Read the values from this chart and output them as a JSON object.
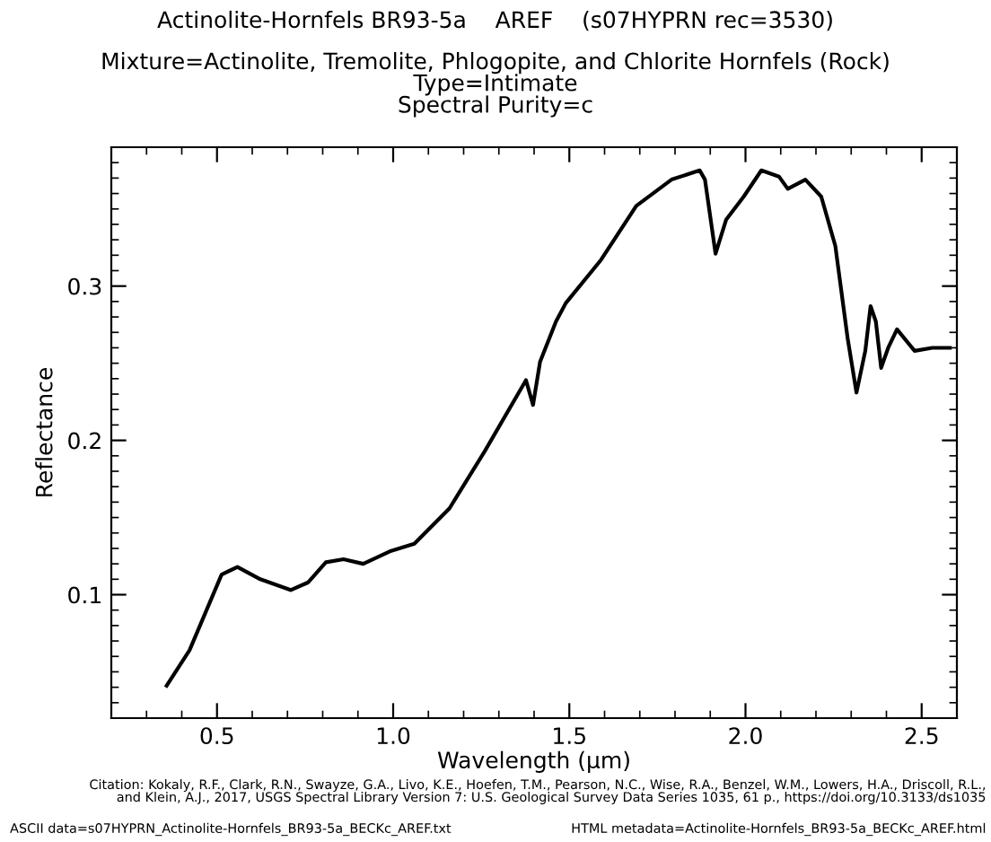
{
  "chart_data": {
    "type": "line",
    "title": "Actinolite-Hornfels BR93-5a    AREF    (s07HYPRN rec=3530)",
    "subtitle": "Mixture=Actinolite, Tremolite, Phlogopite, and Chlorite Hornfels (Rock)\nType=Intimate\nSpectral Purity=c",
    "xlabel": "Wavelength (μm)",
    "ylabel": "Reflectance",
    "x": [
      0.357,
      0.422,
      0.513,
      0.558,
      0.623,
      0.709,
      0.759,
      0.809,
      0.859,
      0.915,
      0.99,
      1.06,
      1.16,
      1.26,
      1.377,
      1.397,
      1.417,
      1.462,
      1.49,
      1.59,
      1.69,
      1.79,
      1.87,
      1.885,
      1.915,
      1.945,
      1.995,
      2.045,
      2.095,
      2.12,
      2.17,
      2.215,
      2.255,
      2.29,
      2.315,
      2.34,
      2.355,
      2.37,
      2.385,
      2.405,
      2.43,
      2.48,
      2.53,
      2.58
    ],
    "series": [
      {
        "color": "#000000",
        "values": [
          0.041,
          0.064,
          0.113,
          0.118,
          0.11,
          0.103,
          0.108,
          0.121,
          0.123,
          0.12,
          0.128,
          0.133,
          0.156,
          0.193,
          0.239,
          0.223,
          0.251,
          0.277,
          0.289,
          0.317,
          0.352,
          0.369,
          0.375,
          0.369,
          0.321,
          0.343,
          0.358,
          0.375,
          0.371,
          0.363,
          0.369,
          0.358,
          0.326,
          0.266,
          0.231,
          0.258,
          0.287,
          0.277,
          0.247,
          0.26,
          0.272,
          0.258,
          0.26,
          0.26
        ]
      }
    ],
    "xlim": [
      0.2,
      2.6
    ],
    "ylim": [
      0.02,
      0.39
    ],
    "xticks": [
      0.5,
      {
        "value": 1.0,
        "label": "1.0"
      },
      1.5,
      {
        "value": 2.0,
        "label": "2.0"
      },
      2.5
    ],
    "yticks": [
      0.1,
      0.2,
      0.3
    ],
    "grid": false,
    "legend": false,
    "marker": "none",
    "line_style": "solid",
    "annotations": [
      "Citation: Kokaly, R.F., Clark, R.N., Swayze, G.A., Livo, K.E., Hoefen, T.M., Pearson, N.C., Wise, R.A., Benzel, W.M., Lowers, H.A., Driscoll, R.L.,\nand Klein, A.J., 2017, USGS Spectral Library Version 7: U.S. Geological Survey Data Series 1035, 61 p., https://doi.org/10.3133/ds1035",
      "ASCII data=s07HYPRN_Actinolite-Hornfels_BR93-5a_BECKc_AREF.txt",
      "HTML metadata=Actinolite-Hornfels_BR93-5a_BECKc_AREF.html"
    ]
  }
}
